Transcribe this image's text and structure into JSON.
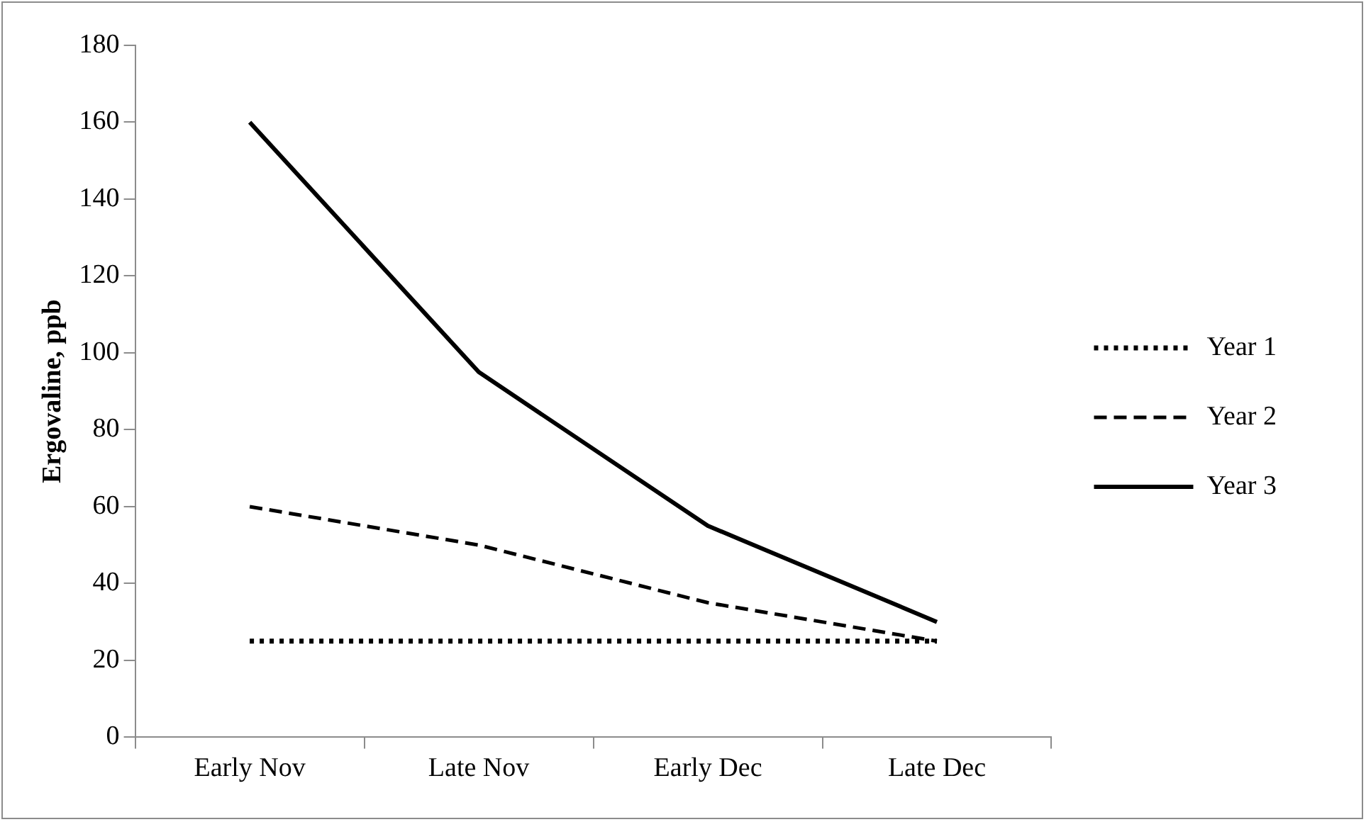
{
  "chart_data": {
    "type": "line",
    "ylabel": "Ergovaline, ppb",
    "categories": [
      "Early Nov",
      "Late Nov",
      "Early Dec",
      "Late Dec"
    ],
    "series": [
      {
        "name": "Year 1",
        "color": "#000000",
        "line_style": "dotted",
        "values": [
          25,
          25,
          25,
          25
        ]
      },
      {
        "name": "Year 2",
        "color": "#000000",
        "line_style": "dashed",
        "values": [
          60,
          50,
          35,
          25
        ]
      },
      {
        "name": "Year 3",
        "color": "#000000",
        "line_style": "solid",
        "values": [
          160,
          95,
          55,
          30
        ]
      }
    ],
    "ylim": [
      0,
      180
    ],
    "yticks": [
      0,
      20,
      40,
      60,
      80,
      100,
      120,
      140,
      160,
      180
    ],
    "grid": false,
    "legend": "right",
    "marker": "none"
  }
}
